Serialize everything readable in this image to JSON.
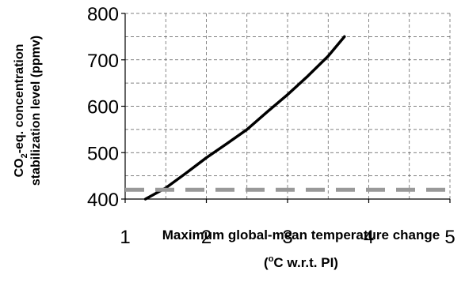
{
  "chart_data": {
    "type": "line",
    "x_axis": {
      "label_line1": "Maximum global-mean temperature change",
      "label_line2_prefix": "(",
      "label_line2_sup": "o",
      "label_line2_suffix": "C w.r.t. PI)",
      "min": 1,
      "max": 5,
      "ticks": [
        "1",
        "2",
        "3",
        "4",
        "5"
      ]
    },
    "y_axis": {
      "label_line1_prefix": "CO",
      "label_line1_sub": "2",
      "label_line1_suffix": "-eq. concentration",
      "label_line2": "stabilization level (ppmv)",
      "min": 400,
      "max": 800,
      "ticks": [
        "400",
        "500",
        "600",
        "700",
        "800"
      ]
    },
    "grid": true,
    "series": [
      {
        "type": "line",
        "color": "#000000",
        "style": "solid",
        "x": [
          1.25,
          1.5,
          1.75,
          2.0,
          2.25,
          2.5,
          2.75,
          3.0,
          3.25,
          3.5,
          3.7
        ],
        "y": [
          400,
          424,
          456,
          489,
          519,
          550,
          588,
          625,
          665,
          708,
          750
        ]
      },
      {
        "type": "hline",
        "color": "#999999",
        "style": "dashed",
        "y": 420
      }
    ]
  }
}
